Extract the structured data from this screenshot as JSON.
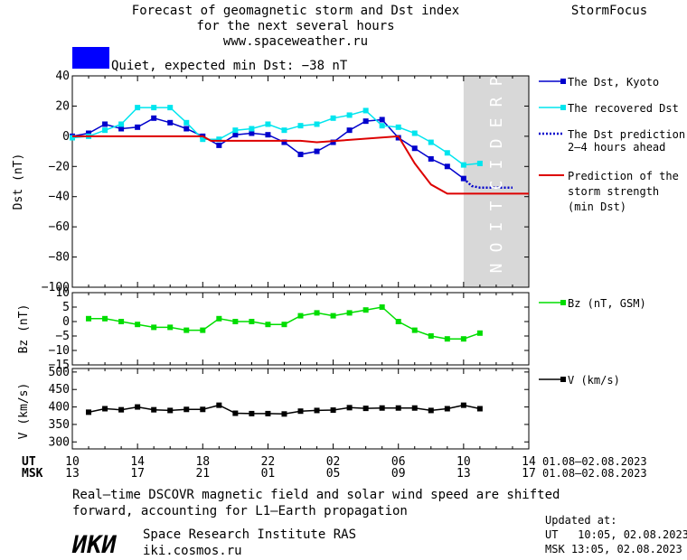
{
  "header": {
    "title_line1": "Forecast of geomagnetic storm and Dst index",
    "title_line2": "for the next several hours",
    "url": "www.spaceweather.ru",
    "brand": "StormFocus",
    "status_text": "Quiet, expected min Dst: −38 nT",
    "status_color": "#0000ff"
  },
  "prediction_label": "PREDICTION",
  "legend": {
    "dst_kyoto": "The Dst, Kyoto",
    "dst_recovered": "The recovered Dst",
    "dst_prediction_l1": "The Dst prediction",
    "dst_prediction_l2": "2–4 hours ahead",
    "storm_l1": "Prediction of the",
    "storm_l2": "storm strength",
    "storm_l3": "(min Dst)",
    "bz": "Bz (nT, GSM)",
    "v": "V (km/s)"
  },
  "time_axis": {
    "ut_label": "UT",
    "msk_label": "MSK",
    "ut_ticks": [
      "10",
      "14",
      "18",
      "22",
      "02",
      "06",
      "10",
      "14"
    ],
    "msk_ticks": [
      "13",
      "17",
      "21",
      "01",
      "05",
      "09",
      "13",
      "17"
    ],
    "ut_dates": "01.08–02.08.2023",
    "msk_dates": "01.08–02.08.2023"
  },
  "footer": {
    "note_l1": "Real–time DSCOVR magnetic field and solar wind speed are shifted",
    "note_l2": "forward, accounting for L1–Earth propagation",
    "logo_text": "ИКИ",
    "institute": "Space Research Institute RAS",
    "site": "iki.cosmos.ru",
    "updated_label": "Updated at:",
    "updated_ut": "UT   10:05, 02.08.2023",
    "updated_msk": "MSK 13:05, 02.08.2023"
  },
  "colors": {
    "dst_kyoto": "#0000cc",
    "dst_recovered": "#00e5ee",
    "prediction": "#0000cc",
    "storm": "#dd0000",
    "bz": "#00dd00",
    "v": "#000000",
    "prediction_zone": "#d8d8d8"
  },
  "chart_data": [
    {
      "type": "line",
      "ylabel": "Dst (nT)",
      "ylim": [
        -100,
        40
      ],
      "yticks": [
        40,
        20,
        0,
        -20,
        -40,
        -60,
        -80,
        -100
      ],
      "xlim": [
        10,
        38
      ],
      "prediction_start": 34,
      "series": [
        {
          "name": "The Dst, Kyoto",
          "x": [
            10,
            11,
            12,
            13,
            14,
            15,
            16,
            17,
            18,
            19,
            20,
            21,
            22,
            23,
            24,
            25,
            26,
            27,
            28,
            29,
            30,
            31,
            32,
            33,
            34
          ],
          "y": [
            0,
            2,
            8,
            5,
            6,
            12,
            9,
            5,
            0,
            -6,
            1,
            2,
            1,
            -4,
            -12,
            -10,
            -4,
            4,
            10,
            11,
            -1,
            -8,
            -15,
            -20,
            -28
          ]
        },
        {
          "name": "The recovered Dst",
          "x": [
            10,
            11,
            12,
            13,
            14,
            15,
            16,
            17,
            18,
            19,
            20,
            21,
            22,
            23,
            24,
            25,
            26,
            27,
            28,
            29,
            30,
            31,
            32,
            33,
            34,
            35
          ],
          "y": [
            -1,
            0,
            4,
            8,
            19,
            19,
            19,
            9,
            -2,
            -2,
            4,
            5,
            8,
            4,
            7,
            8,
            12,
            14,
            17,
            7,
            6,
            2,
            -4,
            -11,
            -19,
            -18
          ]
        },
        {
          "name": "The Dst prediction 2–4 hours ahead",
          "x": [
            34,
            34.5,
            35,
            36,
            37
          ],
          "y": [
            -28,
            -33,
            -34,
            -34,
            -34
          ]
        },
        {
          "name": "Prediction of the storm strength (min Dst)",
          "x": [
            10,
            18,
            18.5,
            24,
            25,
            30,
            31,
            32,
            33,
            34,
            38
          ],
          "y": [
            0,
            0,
            -3,
            -3,
            -4,
            0,
            -18,
            -32,
            -38,
            -38,
            -38
          ]
        }
      ]
    },
    {
      "type": "line",
      "ylabel": "Bz (nT)",
      "ylim": [
        -15,
        10
      ],
      "yticks": [
        10,
        5,
        0,
        -5,
        -10,
        -15
      ],
      "xlim": [
        10,
        38
      ],
      "series": [
        {
          "name": "Bz (nT, GSM)",
          "x": [
            11,
            12,
            13,
            14,
            15,
            16,
            17,
            18,
            19,
            20,
            21,
            22,
            23,
            24,
            25,
            26,
            27,
            28,
            29,
            30,
            31,
            32,
            33,
            34,
            35
          ],
          "y": [
            1,
            1,
            0,
            -1,
            -2,
            -2,
            -3,
            -3,
            1,
            0,
            0,
            -1,
            -1,
            2,
            3,
            2,
            3,
            4,
            5,
            0,
            -3,
            -5,
            -6,
            -6,
            -4
          ]
        }
      ]
    },
    {
      "type": "line",
      "ylabel": "V (km/s)",
      "ylim": [
        280,
        510
      ],
      "yticks": [
        500,
        450,
        400,
        350,
        300
      ],
      "xlim": [
        10,
        38
      ],
      "series": [
        {
          "name": "V (km/s)",
          "x": [
            11,
            12,
            13,
            14,
            15,
            16,
            17,
            18,
            19,
            20,
            21,
            22,
            23,
            24,
            25,
            26,
            27,
            28,
            29,
            30,
            31,
            32,
            33,
            34,
            35
          ],
          "y": [
            385,
            395,
            392,
            400,
            392,
            390,
            393,
            393,
            405,
            382,
            381,
            381,
            380,
            388,
            390,
            391,
            398,
            396,
            397,
            397,
            397,
            390,
            395,
            405,
            395
          ]
        }
      ]
    }
  ]
}
